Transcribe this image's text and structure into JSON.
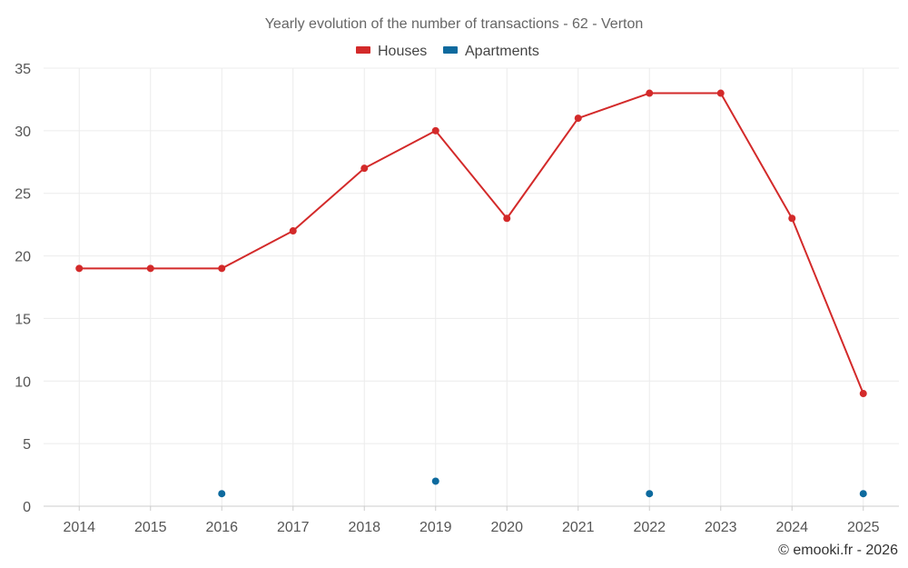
{
  "chart_data": {
    "type": "line",
    "title": "Yearly evolution of the number of transactions - 62 - Verton",
    "categories": [
      "2014",
      "2015",
      "2016",
      "2017",
      "2018",
      "2019",
      "2020",
      "2021",
      "2022",
      "2023",
      "2024",
      "2025"
    ],
    "series": [
      {
        "name": "Houses",
        "color": "#d32a2a",
        "values": [
          19,
          19,
          19,
          22,
          27,
          30,
          23,
          31,
          33,
          33,
          23,
          9
        ]
      },
      {
        "name": "Apartments",
        "color": "#0d6a9e",
        "values": [
          null,
          null,
          1,
          null,
          null,
          2,
          null,
          null,
          1,
          null,
          null,
          1
        ]
      }
    ],
    "ylim": [
      0,
      35
    ],
    "yticks": [
      0,
      5,
      10,
      15,
      20,
      25,
      30,
      35
    ],
    "xlabel": "",
    "ylabel": "",
    "grid": true,
    "legend_position": "top-center"
  },
  "credit": "© emooki.fr - 2026"
}
